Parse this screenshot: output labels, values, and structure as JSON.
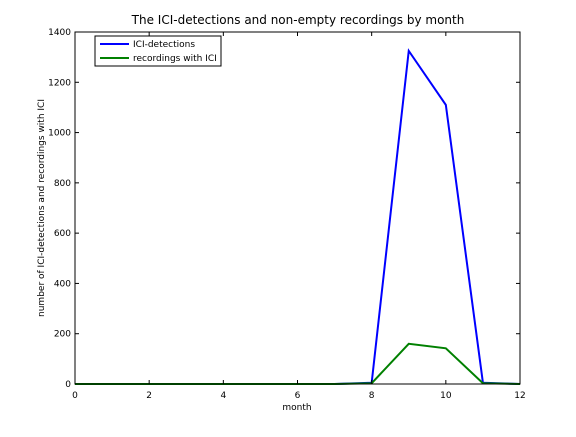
{
  "chart_data": {
    "type": "line",
    "title": "The ICI-detections and non-empty recordings by month",
    "xlabel": "month",
    "ylabel": "number of ICI-detections and recordings with ICI",
    "xlim": [
      0,
      12
    ],
    "ylim": [
      0,
      1400
    ],
    "xticks": [
      0,
      2,
      4,
      6,
      8,
      10,
      12
    ],
    "yticks": [
      0,
      200,
      400,
      600,
      800,
      1000,
      1200,
      1400
    ],
    "grid": false,
    "legend_position": "top-left",
    "x": [
      0,
      1,
      2,
      3,
      4,
      5,
      6,
      7,
      8,
      9,
      10,
      11,
      12
    ],
    "series": [
      {
        "name": "ICI-detections",
        "color": "#0000ff",
        "values": [
          0,
          0,
          0,
          0,
          0,
          0,
          0,
          0,
          5,
          1325,
          1110,
          5,
          0
        ]
      },
      {
        "name": "recordings with ICI",
        "color": "#008000",
        "values": [
          0,
          0,
          0,
          0,
          0,
          0,
          0,
          0,
          3,
          160,
          142,
          3,
          0
        ]
      }
    ]
  }
}
